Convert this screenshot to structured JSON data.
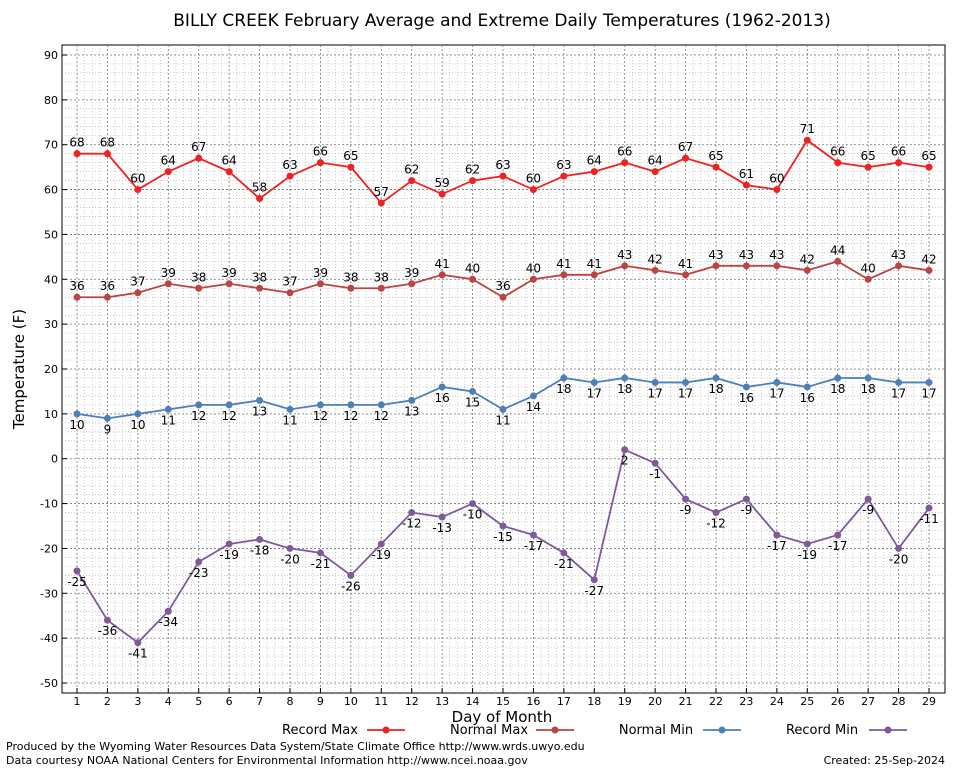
{
  "chart_data": {
    "type": "line",
    "title": "BILLY CREEK February Average and Extreme Daily Temperatures (1962-2013)",
    "xlabel": "Day of Month",
    "ylabel": "Temperature (F)",
    "ylim": [
      -50,
      90
    ],
    "yticks": [
      90,
      80,
      70,
      60,
      50,
      40,
      30,
      20,
      10,
      0,
      -10,
      -20,
      -30,
      -40,
      -50
    ],
    "grid": true,
    "legend_position": "bottom",
    "x": [
      1,
      2,
      3,
      4,
      5,
      6,
      7,
      8,
      9,
      10,
      11,
      12,
      13,
      14,
      15,
      16,
      17,
      18,
      19,
      20,
      21,
      22,
      23,
      24,
      25,
      26,
      27,
      28,
      29
    ],
    "series": [
      {
        "name": "Record Max",
        "color": "#ee2222",
        "label_position": "above",
        "values": [
          68,
          68,
          60,
          64,
          67,
          64,
          58,
          63,
          66,
          65,
          57,
          62,
          59,
          62,
          63,
          60,
          63,
          64,
          66,
          64,
          67,
          65,
          61,
          60,
          71,
          66,
          65,
          66,
          65
        ]
      },
      {
        "name": "Normal Max",
        "color": "#bb4444",
        "label_position": "above",
        "values": [
          36,
          36,
          37,
          39,
          38,
          39,
          38,
          37,
          39,
          38,
          38,
          39,
          41,
          40,
          36,
          40,
          41,
          41,
          43,
          42,
          41,
          43,
          43,
          43,
          42,
          44,
          40,
          43,
          42
        ]
      },
      {
        "name": "Normal Min",
        "color": "#4d7fb8",
        "label_position": "below",
        "values": [
          10,
          9,
          10,
          11,
          12,
          12,
          13,
          11,
          12,
          12,
          12,
          13,
          16,
          15,
          11,
          14,
          18,
          17,
          18,
          17,
          17,
          18,
          16,
          17,
          16,
          18,
          18,
          17,
          17
        ]
      },
      {
        "name": "Record Min",
        "color": "#7e5a9b",
        "label_position": "below",
        "values": [
          -25,
          -36,
          -41,
          -34,
          -23,
          -19,
          -18,
          -20,
          -21,
          -26,
          -19,
          -12,
          -13,
          -10,
          -15,
          -17,
          -21,
          -27,
          2,
          -1,
          -9,
          -12,
          -9,
          -17,
          -19,
          -17,
          -9,
          -20,
          -11
        ]
      }
    ]
  },
  "footer": {
    "produced_by": "Produced by the Wyoming Water Resources Data System/State Climate Office http://www.wrds.uwyo.edu",
    "data_courtesy": "Data courtesy NOAA National Centers for Environmental Information http://www.ncei.noaa.gov",
    "created": "Created:  25-Sep-2024"
  }
}
